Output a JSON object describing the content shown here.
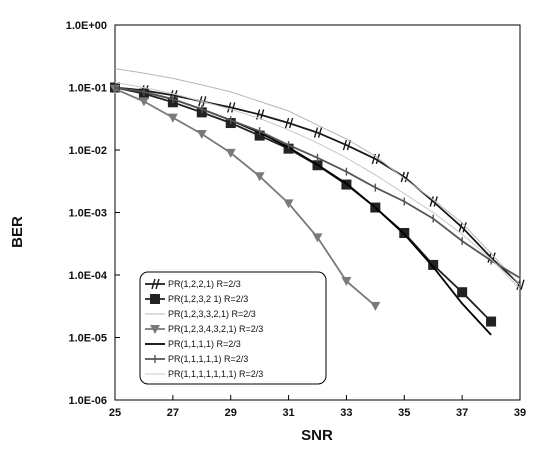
{
  "chart_data": {
    "type": "line",
    "title": "",
    "xlabel": "SNR",
    "ylabel": "BER",
    "xlim": [
      25,
      39
    ],
    "ylim": [
      1e-06,
      1
    ],
    "y_scale": "log",
    "x_ticks": [
      "25",
      "27",
      "29",
      "31",
      "33",
      "35",
      "37",
      "39"
    ],
    "y_ticks": [
      "1.0E+00",
      "1.0E-01",
      "1.0E-02",
      "1.0E-03",
      "1.0E-04",
      "1.0E-05",
      "1.0E-06"
    ],
    "grid": false,
    "legend_position": "bottom-left",
    "series": [
      {
        "name": "PR(1,2,2,1) R=2/3",
        "color": "#1a1a1a",
        "marker": "hash",
        "x": [
          25,
          26,
          27,
          28,
          29,
          30,
          31,
          32,
          33,
          34,
          35,
          36,
          37,
          38,
          39
        ],
        "y": [
          0.1,
          0.09,
          0.075,
          0.06,
          0.048,
          0.037,
          0.027,
          0.019,
          0.012,
          0.0072,
          0.0037,
          0.0015,
          0.00058,
          0.00019,
          7e-05
        ]
      },
      {
        "name": "PR(1,2,3,2 1) R=2/3",
        "color": "#222222",
        "marker": "square",
        "x": [
          25,
          26,
          27,
          28,
          29,
          30,
          31,
          32,
          33,
          34,
          35,
          36,
          37,
          38
        ],
        "y": [
          0.1,
          0.08,
          0.058,
          0.04,
          0.027,
          0.017,
          0.0105,
          0.0057,
          0.0028,
          0.0012,
          0.00047,
          0.000145,
          5.3e-05,
          1.8e-05
        ]
      },
      {
        "name": "PR(1,2,3,3,2,1) R=2/3",
        "color": "#b8b8b8",
        "marker": "none",
        "x": [
          25,
          26,
          27,
          28,
          29,
          30,
          31,
          32,
          33,
          34,
          35,
          36,
          37,
          38,
          39
        ],
        "y": [
          0.2,
          0.17,
          0.14,
          0.11,
          0.085,
          0.06,
          0.042,
          0.025,
          0.015,
          0.008,
          0.0035,
          0.0016,
          0.00068,
          0.00022,
          7e-05
        ]
      },
      {
        "name": "PR(1,2,3,4,3,2,1) R=2/3",
        "color": "#7a7a7a",
        "marker": "star",
        "x": [
          25,
          26,
          27,
          28,
          29,
          30,
          31,
          32,
          33,
          34
        ],
        "y": [
          0.095,
          0.06,
          0.033,
          0.018,
          0.009,
          0.0038,
          0.0014,
          0.0004,
          8e-05,
          3.2e-05
        ]
      },
      {
        "name": "PR(1,1,1,1) R=2/3",
        "color": "#000000",
        "marker": "none",
        "x": [
          25,
          26,
          27,
          28,
          29,
          30,
          31,
          32,
          33,
          34,
          35,
          36,
          37,
          38
        ],
        "y": [
          0.1,
          0.085,
          0.065,
          0.045,
          0.03,
          0.019,
          0.011,
          0.0058,
          0.0029,
          0.0012,
          0.00045,
          0.000135,
          3.5e-05,
          1.1e-05
        ]
      },
      {
        "name": "PR(1,1,1,1,1) R=2/3",
        "color": "#555555",
        "marker": "tick",
        "x": [
          25,
          26,
          27,
          28,
          29,
          30,
          31,
          32,
          33,
          34,
          35,
          36,
          37,
          38,
          39
        ],
        "y": [
          0.1,
          0.085,
          0.065,
          0.045,
          0.03,
          0.02,
          0.012,
          0.0075,
          0.0045,
          0.0025,
          0.0015,
          0.0008,
          0.00035,
          0.00017,
          9e-05
        ]
      },
      {
        "name": "PR(1,1,1,1,1,1,1) R=2/3",
        "color": "#c8c8c8",
        "marker": "none",
        "x": [
          25,
          26,
          27,
          28,
          29,
          30,
          31,
          32,
          33,
          34,
          35,
          36,
          37,
          38,
          39
        ],
        "y": [
          0.12,
          0.1,
          0.08,
          0.06,
          0.045,
          0.032,
          0.021,
          0.013,
          0.0075,
          0.004,
          0.002,
          0.001,
          0.00045,
          0.00018,
          6e-05
        ]
      }
    ]
  }
}
